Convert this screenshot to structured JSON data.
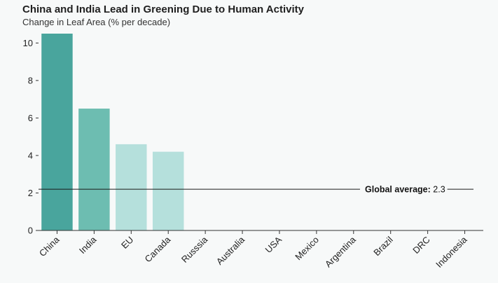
{
  "chart_data": {
    "type": "bar",
    "title": "China and India Lead in Greening Due to Human Activity",
    "subtitle": "Change in Leaf Area (% per decade)",
    "categories": [
      "China",
      "India",
      "EU",
      "Canada",
      "Russsia",
      "Australia",
      "USA",
      "Mexico",
      "Argentina",
      "Brazil",
      "DRC",
      "Indonesia"
    ],
    "values": [
      10.5,
      6.5,
      4.6,
      4.2,
      0,
      0,
      0,
      0,
      0,
      0,
      0,
      0
    ],
    "bar_colors": [
      "#49a59d",
      "#6dbdb1",
      "#b5e0dc",
      "#b5e0dc"
    ],
    "yticks": [
      0,
      2,
      4,
      6,
      8,
      10
    ],
    "ylim": [
      0,
      10.5
    ],
    "grid": false,
    "annotation": {
      "label": "Global average:",
      "value": "2.3",
      "y": 2.2
    }
  }
}
